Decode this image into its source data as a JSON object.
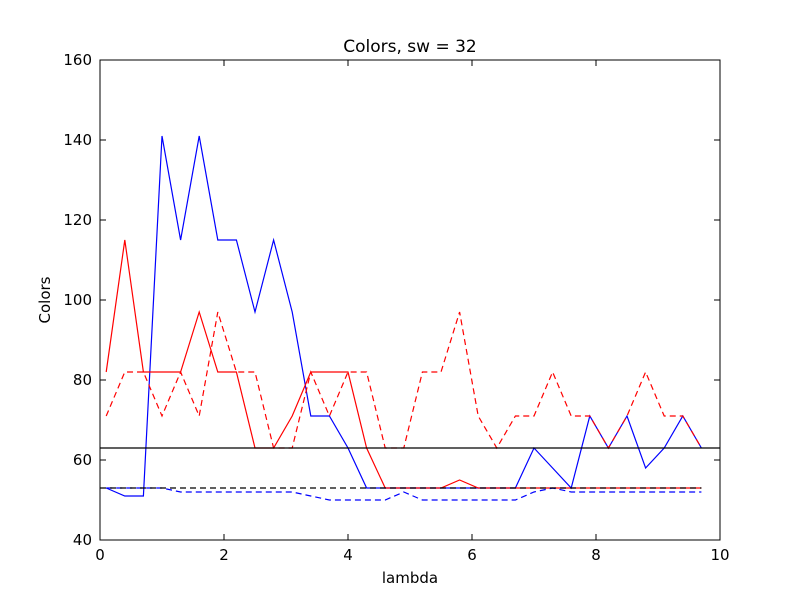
{
  "chart_data": {
    "type": "line",
    "title": "Colors, sw = 32",
    "xlabel": "lambda",
    "ylabel": "Colors",
    "xlim": [
      0,
      10
    ],
    "ylim": [
      40,
      160
    ],
    "xticks": [
      "0",
      "2",
      "4",
      "6",
      "8",
      "10"
    ],
    "yticks": [
      "40",
      "60",
      "80",
      "100",
      "120",
      "140",
      "160"
    ],
    "grid": false,
    "x": [
      0.1,
      0.4,
      0.7,
      1.0,
      1.3,
      1.6,
      1.9,
      2.2,
      2.5,
      2.8,
      3.1,
      3.4,
      3.7,
      4.0,
      4.3,
      4.6,
      4.9,
      5.2,
      5.5,
      5.8,
      6.1,
      6.4,
      6.7,
      7.0,
      7.3,
      7.6,
      7.9,
      8.2,
      8.5,
      8.8,
      9.1,
      9.4,
      9.7
    ],
    "series": [
      {
        "color": "#0000ff",
        "style": "solid",
        "values": [
          53,
          51,
          51,
          141,
          115,
          141,
          115,
          115,
          97,
          115,
          97,
          71,
          71,
          63,
          53,
          53,
          53,
          53,
          53,
          53,
          53,
          53,
          53,
          63,
          58,
          53,
          71,
          63,
          71,
          58,
          63,
          71,
          63
        ]
      },
      {
        "color": "#ff0000",
        "style": "solid",
        "values": [
          82,
          115,
          82,
          82,
          82,
          97,
          82,
          82,
          63,
          63,
          71,
          82,
          82,
          82,
          63,
          53,
          53,
          53,
          53,
          55,
          53,
          53,
          53,
          53,
          53,
          53,
          53,
          53,
          53,
          53,
          53,
          53,
          53
        ]
      },
      {
        "color": "#ff0000",
        "style": "dashed",
        "values": [
          71,
          82,
          82,
          71,
          82,
          71,
          97,
          82,
          82,
          63,
          63,
          82,
          71,
          82,
          82,
          63,
          63,
          82,
          82,
          97,
          71,
          63,
          71,
          71,
          82,
          71,
          71,
          63,
          71,
          82,
          71,
          71,
          63
        ]
      },
      {
        "color": "#0000ff",
        "style": "dashed",
        "values": [
          53,
          53,
          53,
          53,
          52,
          52,
          52,
          52,
          52,
          52,
          52,
          51,
          50,
          50,
          50,
          50,
          52,
          50,
          50,
          50,
          50,
          50,
          50,
          52,
          53,
          52,
          52,
          52,
          52,
          52,
          52,
          52,
          52
        ]
      },
      {
        "color": "#000000",
        "style": "solid",
        "x": [
          0,
          10
        ],
        "values": [
          63,
          63
        ]
      },
      {
        "color": "#000000",
        "style": "dashed",
        "x": [
          0,
          9.7
        ],
        "values": [
          53,
          53
        ]
      }
    ]
  }
}
